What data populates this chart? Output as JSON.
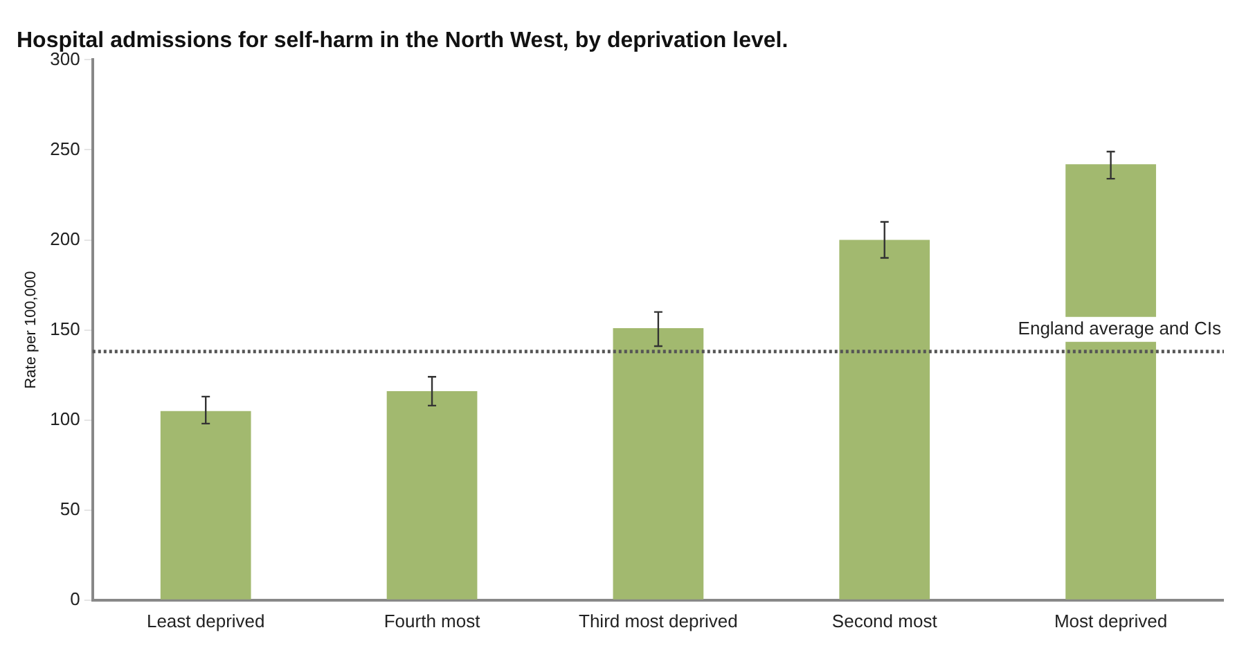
{
  "chart_data": {
    "type": "bar",
    "title": "Hospital admissions for self-harm in the North West, by deprivation level.",
    "ylabel": "Rate per 100,000",
    "categories": [
      "Least deprived",
      "Fourth most",
      "Third most deprived",
      "Second most",
      "Most deprived"
    ],
    "values": [
      105,
      116,
      151,
      200,
      242
    ],
    "errors": [
      [
        98,
        113
      ],
      [
        108,
        124
      ],
      [
        141,
        160
      ],
      [
        190,
        210
      ],
      [
        234,
        249
      ]
    ],
    "color": "#a2b96f",
    "ylim": [
      0,
      300
    ],
    "yticks": [
      0,
      50,
      100,
      150,
      200,
      250,
      300
    ],
    "ref_lines": [
      {
        "axis": "y",
        "value": 138,
        "label": "England average and CIs",
        "color": "#555555",
        "line_style": "dotted"
      }
    ],
    "grid": false,
    "legend": false
  }
}
